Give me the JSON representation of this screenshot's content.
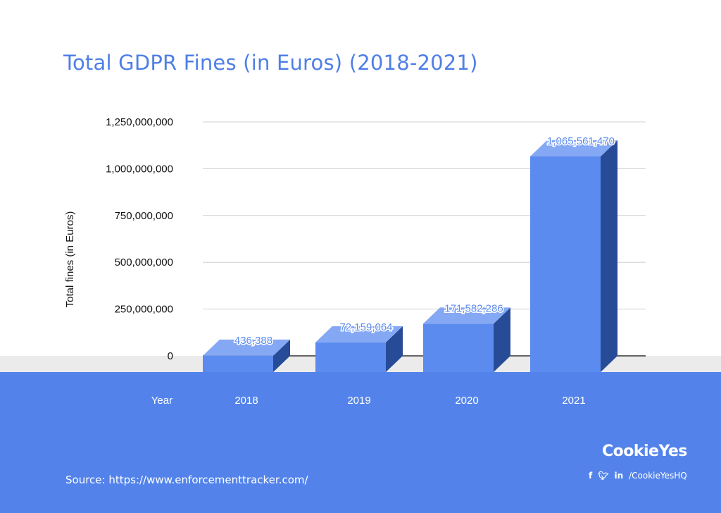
{
  "chart_data": {
    "type": "bar",
    "title": "Total GDPR Fines (in Euros) (2018-2021)",
    "xlabel": "Year",
    "ylabel": "Total fines (in Euros)",
    "categories": [
      "2018",
      "2019",
      "2020",
      "2021"
    ],
    "values": [
      436388,
      72159064,
      171582286,
      1065561470
    ],
    "value_labels": [
      "436,388",
      "72,159,064",
      "171,582,286",
      "1,065,561,470"
    ],
    "ylim": [
      0,
      1250000000
    ],
    "yticks": [
      0,
      250000000,
      500000000,
      750000000,
      1000000000,
      1250000000
    ],
    "ytick_labels": [
      "0",
      "250,000,000",
      "500,000,000",
      "750,000,000",
      "1,000,000,000",
      "1,250,000,000"
    ],
    "grid": true,
    "style": "3d-bars",
    "colors": {
      "bar_front": "#5b8bef",
      "bar_top": "#85a8f5",
      "bar_side": "#274b96",
      "title": "#4f7fe6",
      "value_label": "#5b8bef",
      "footer": "#5383ea"
    }
  },
  "footer": {
    "source": "Source: https://www.enforcementtracker.com/",
    "brand": "CookieYes",
    "social_handle": "/CookieYesHQ",
    "social_icons": [
      "facebook-icon",
      "twitter-icon",
      "linkedin-icon"
    ]
  }
}
